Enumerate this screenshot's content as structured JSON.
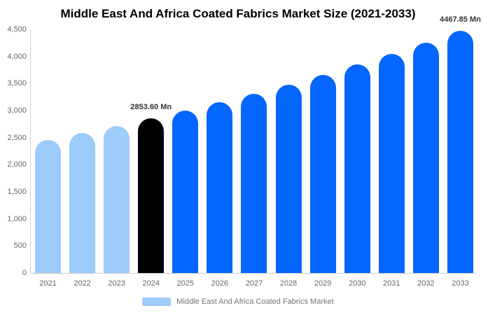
{
  "chart_data": {
    "type": "bar",
    "title": "Middle East And Africa Coated Fabrics Market Size (2021-2033)",
    "unit": "Mn",
    "categories": [
      "2021",
      "2022",
      "2023",
      "2024",
      "2025",
      "2026",
      "2027",
      "2028",
      "2029",
      "2030",
      "2031",
      "2032",
      "2033"
    ],
    "values": [
      2457.29,
      2582.92,
      2714.97,
      2853.6,
      2999.43,
      3152.72,
      3313.85,
      3483.21,
      3661.23,
      3848.34,
      4045.02,
      4251.75,
      4467.85
    ],
    "point_roles": [
      "historical",
      "historical",
      "historical",
      "base_year",
      "forecast",
      "forecast",
      "forecast",
      "forecast",
      "forecast",
      "forecast",
      "forecast",
      "forecast",
      "forecast"
    ],
    "labeled_points": [
      {
        "category": "2024",
        "label": "2853.60 Mn"
      },
      {
        "category": "2033",
        "label": "4467.85 Mn"
      }
    ],
    "xlabel": "",
    "ylabel": "",
    "ylim": [
      0,
      4500
    ],
    "ytick_step": 500,
    "ytick_labels": [
      "0",
      "500",
      "1,000",
      "1,500",
      "2,000",
      "2,500",
      "3,000",
      "3,500",
      "4,000",
      "4,500"
    ],
    "grid": false,
    "colors": {
      "historical": "#9DCBFA",
      "base_year": "#000000",
      "forecast": "#0566FE",
      "axis_line": "#cfcfcf",
      "tick_text": "#666666",
      "data_label_text": "#333333",
      "legend_text": "#757575"
    },
    "legend": {
      "position": "bottom",
      "entries": [
        {
          "label": "Middle East And Africa Coated Fabrics Market",
          "color": "#9DCBFA"
        }
      ]
    }
  }
}
